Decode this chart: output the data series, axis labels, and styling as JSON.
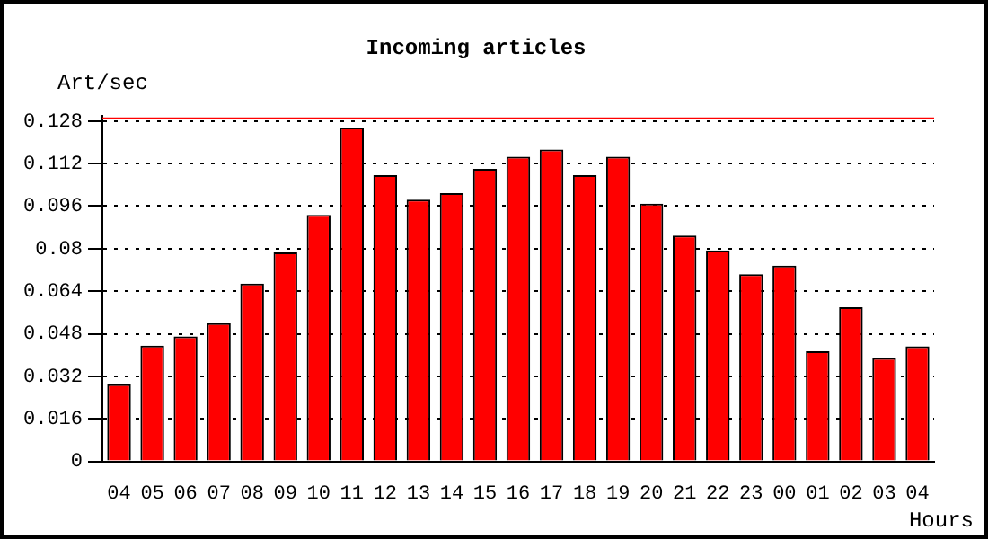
{
  "chart_data": {
    "type": "bar",
    "title": "Incoming articles",
    "ylabel": "Art/sec",
    "xlabel": "Hours",
    "categories": [
      "04",
      "05",
      "06",
      "07",
      "08",
      "09",
      "10",
      "11",
      "12",
      "13",
      "14",
      "15",
      "16",
      "17",
      "18",
      "19",
      "20",
      "21",
      "22",
      "23",
      "00",
      "01",
      "02",
      "03",
      "04"
    ],
    "series": [
      {
        "color": "#ff0000",
        "values": [
          0.029,
          0.0435,
          0.047,
          0.052,
          0.0668,
          0.0786,
          0.0927,
          0.1255,
          0.1076,
          0.0984,
          0.1009,
          0.11,
          0.1146,
          0.1173,
          0.1076,
          0.1146,
          0.0969,
          0.0849,
          0.0793,
          0.0704,
          0.0736,
          0.0414,
          0.058,
          0.0389,
          0.0433
        ]
      }
    ],
    "ylim": [
      0,
      0.13
    ],
    "yticks": [
      0,
      0.016,
      0.032,
      0.048,
      0.064,
      0.08,
      0.096,
      0.112,
      0.128
    ],
    "ref_lines": [
      {
        "axis": "y",
        "value": 0.129,
        "color": "#ff0000"
      }
    ],
    "grid": "y",
    "legend": false
  }
}
